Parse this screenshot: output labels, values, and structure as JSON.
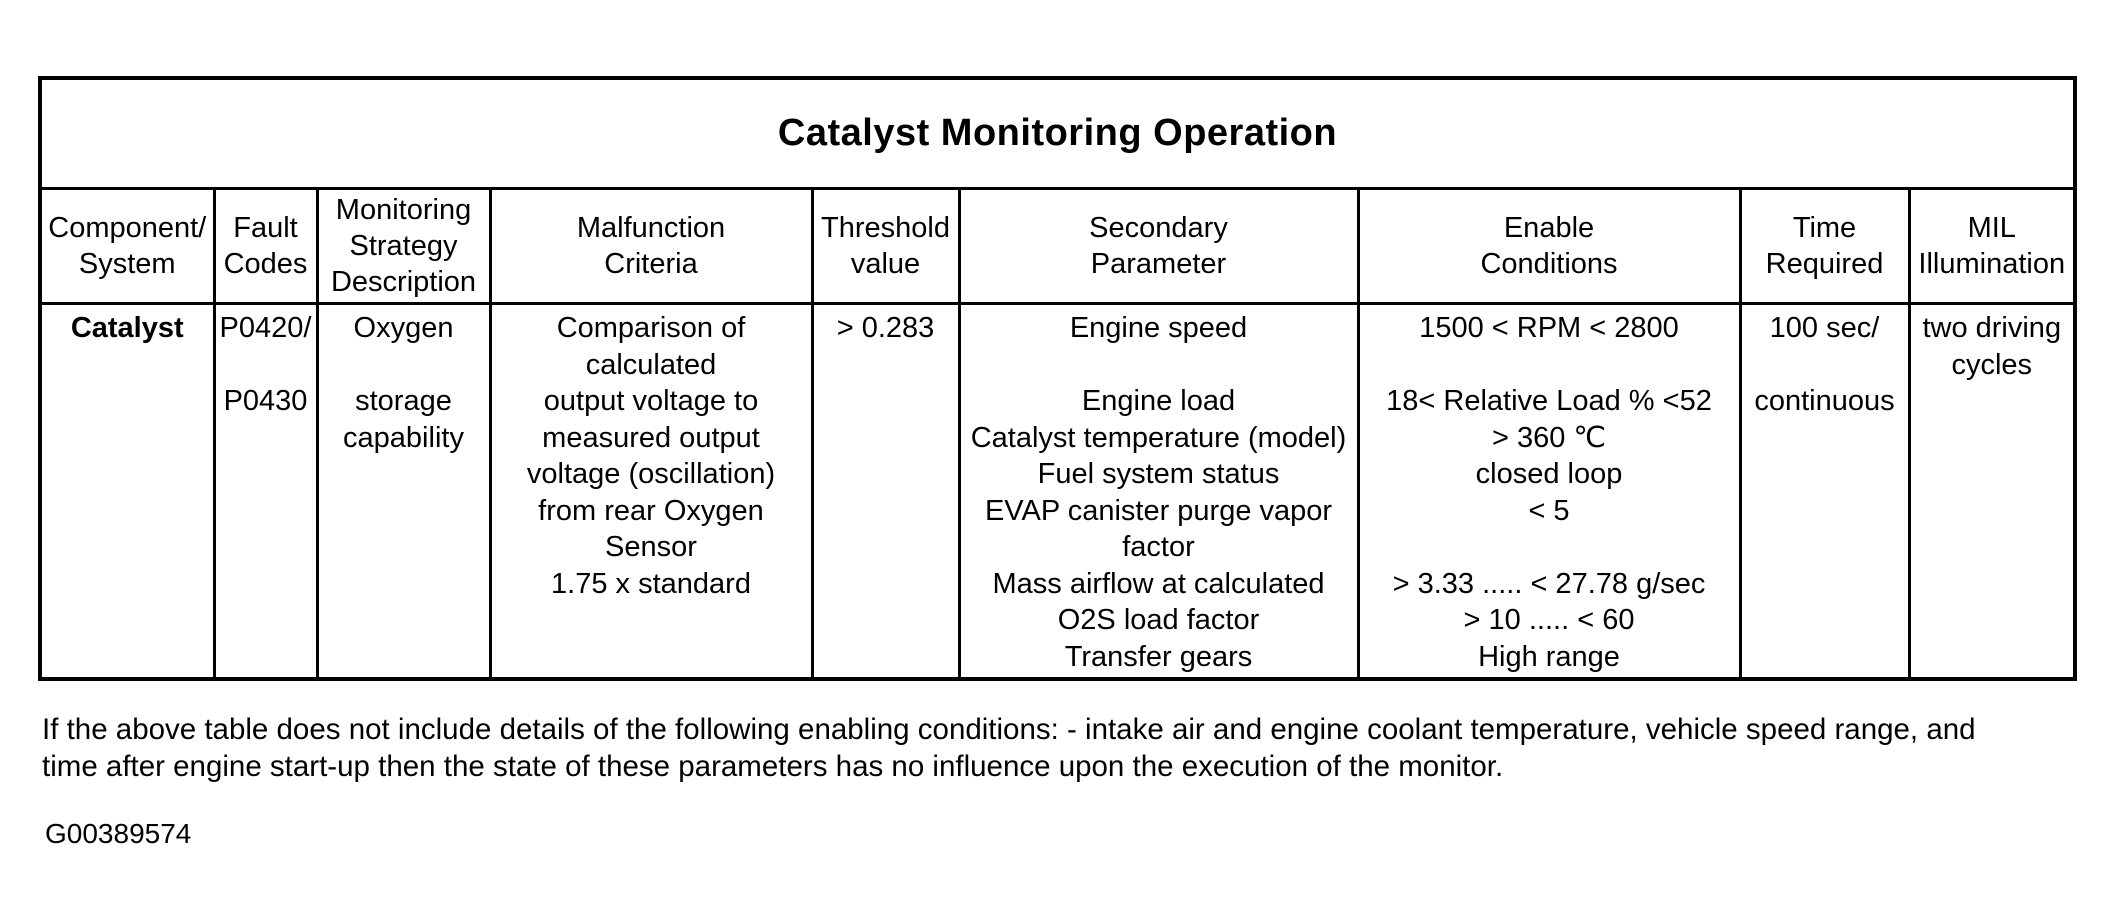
{
  "colors": {
    "paper": "#ffffff",
    "ink": "#000000"
  },
  "table": {
    "title": "Catalyst Monitoring Operation",
    "headers": [
      {
        "id": "component_system",
        "lines": [
          "Component/",
          "System"
        ]
      },
      {
        "id": "fault_codes",
        "lines": [
          "Fault",
          "Codes"
        ]
      },
      {
        "id": "monitoring_strategy_description",
        "lines": [
          "Monitoring",
          "Strategy",
          "Description"
        ]
      },
      {
        "id": "malfunction_criteria",
        "lines": [
          "Malfunction",
          "Criteria"
        ]
      },
      {
        "id": "threshold_value",
        "lines": [
          "Threshold",
          "value"
        ]
      },
      {
        "id": "secondary_parameter",
        "lines": [
          "Secondary",
          "Parameter"
        ]
      },
      {
        "id": "enable_conditions",
        "lines": [
          "Enable",
          "Conditions"
        ]
      },
      {
        "id": "time_required",
        "lines": [
          "Time",
          "Required"
        ]
      },
      {
        "id": "mil_illumination",
        "lines": [
          "MIL",
          "Illumination"
        ]
      }
    ],
    "rows": [
      {
        "cells": {
          "component_system": [
            "Catalyst"
          ],
          "fault_codes": [
            "P0420/",
            "",
            "P0430"
          ],
          "monitoring_strategy_description": [
            "Oxygen",
            "",
            "storage",
            "capability"
          ],
          "malfunction_criteria": [
            "Comparison of",
            "calculated",
            "output voltage to",
            "measured output",
            "voltage (oscillation)",
            "from rear Oxygen",
            "Sensor",
            "1.75 x standard"
          ],
          "threshold_value": [
            "> 0.283"
          ],
          "secondary_parameter": [
            "Engine speed",
            "",
            "Engine load",
            "Catalyst temperature (model)",
            "Fuel system status",
            "EVAP canister purge vapor",
            "factor",
            "Mass airflow at calculated",
            "O2S load factor",
            "Transfer gears"
          ],
          "enable_conditions": [
            "1500 < RPM < 2800",
            "",
            "18< Relative Load % <52",
            "> 360 ℃",
            "closed loop",
            "< 5",
            "",
            "> 3.33 ..... < 27.78 g/sec",
            "> 10 ..... < 60",
            "High range"
          ],
          "time_required": [
            "100 sec/",
            "",
            "continuous"
          ],
          "mil_illumination": [
            "two driving",
            "cycles"
          ]
        }
      }
    ]
  },
  "footer": {
    "note_lines": [
      "If the above table does not include details of the following enabling conditions: - intake air and engine coolant temperature, vehicle speed range, and",
      "time after engine start-up then the state of these parameters has no influence upon the execution of the monitor."
    ],
    "note_text": "If the above table does not include details of the following enabling conditions: - intake air and engine coolant temperature, vehicle speed range, and time after engine start-up then the state of these parameters has no influence upon the execution of the monitor.",
    "figure_id": "G00389574"
  }
}
